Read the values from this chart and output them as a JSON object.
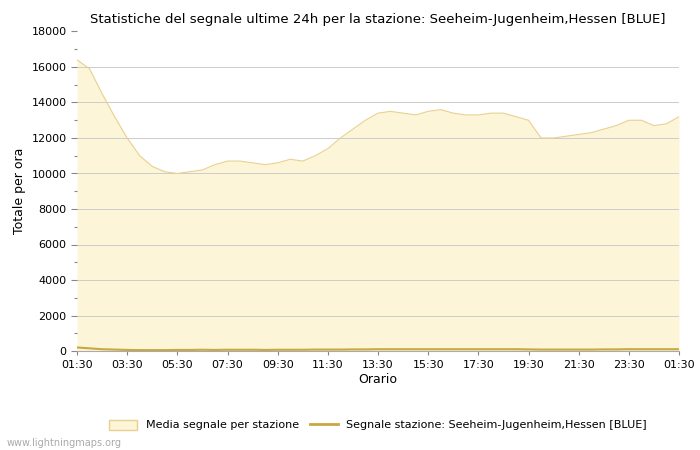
{
  "title": "Statistiche del segnale ultime 24h per la stazione: Seeheim-Jugenheim,Hessen [BLUE]",
  "xlabel": "Orario",
  "ylabel": "Totale per ora",
  "xtick_labels": [
    "01:30",
    "03:30",
    "05:30",
    "07:30",
    "09:30",
    "11:30",
    "13:30",
    "15:30",
    "17:30",
    "19:30",
    "21:30",
    "23:30",
    "01:30"
  ],
  "ytick_values": [
    0,
    2000,
    4000,
    6000,
    8000,
    10000,
    12000,
    14000,
    16000,
    18000
  ],
  "ylim": [
    0,
    18000
  ],
  "fill_color": "#fdf5d8",
  "fill_edge_color": "#e8d090",
  "line_color": "#c8a840",
  "background_color": "#ffffff",
  "grid_color": "#cccccc",
  "watermark": "www.lightningmaps.org",
  "legend_fill_label": "Media segnale per stazione",
  "legend_line_label": "Segnale stazione: Seeheim-Jugenheim,Hessen [BLUE]",
  "x_values": [
    0,
    1,
    2,
    3,
    4,
    5,
    6,
    7,
    8,
    9,
    10,
    11,
    12,
    13,
    14,
    15,
    16,
    17,
    18,
    19,
    20,
    21,
    22,
    23,
    24,
    25,
    26,
    27,
    28,
    29,
    30,
    31,
    32,
    33,
    34,
    35,
    36,
    37,
    38,
    39,
    40,
    41,
    42,
    43,
    44,
    45,
    46,
    47,
    48
  ],
  "y_fill": [
    16400,
    15900,
    14500,
    13200,
    12000,
    11000,
    10400,
    10100,
    10000,
    10100,
    10200,
    10500,
    10700,
    10700,
    10600,
    10500,
    10600,
    10800,
    10700,
    11000,
    11400,
    12000,
    12500,
    13000,
    13400,
    13500,
    13400,
    13300,
    13500,
    13600,
    13400,
    13300,
    13300,
    13400,
    13400,
    13200,
    13000,
    12000,
    12000,
    12100,
    12200,
    12300,
    12500,
    12700,
    13000,
    13000,
    12700,
    12800,
    13200
  ],
  "y_line": [
    200,
    150,
    100,
    80,
    60,
    50,
    50,
    50,
    60,
    60,
    70,
    60,
    70,
    70,
    70,
    60,
    70,
    70,
    70,
    80,
    80,
    80,
    90,
    90,
    100,
    100,
    100,
    100,
    100,
    100,
    100,
    100,
    100,
    100,
    100,
    100,
    90,
    80,
    80,
    80,
    80,
    80,
    90,
    90,
    100,
    100,
    100,
    100,
    100
  ]
}
